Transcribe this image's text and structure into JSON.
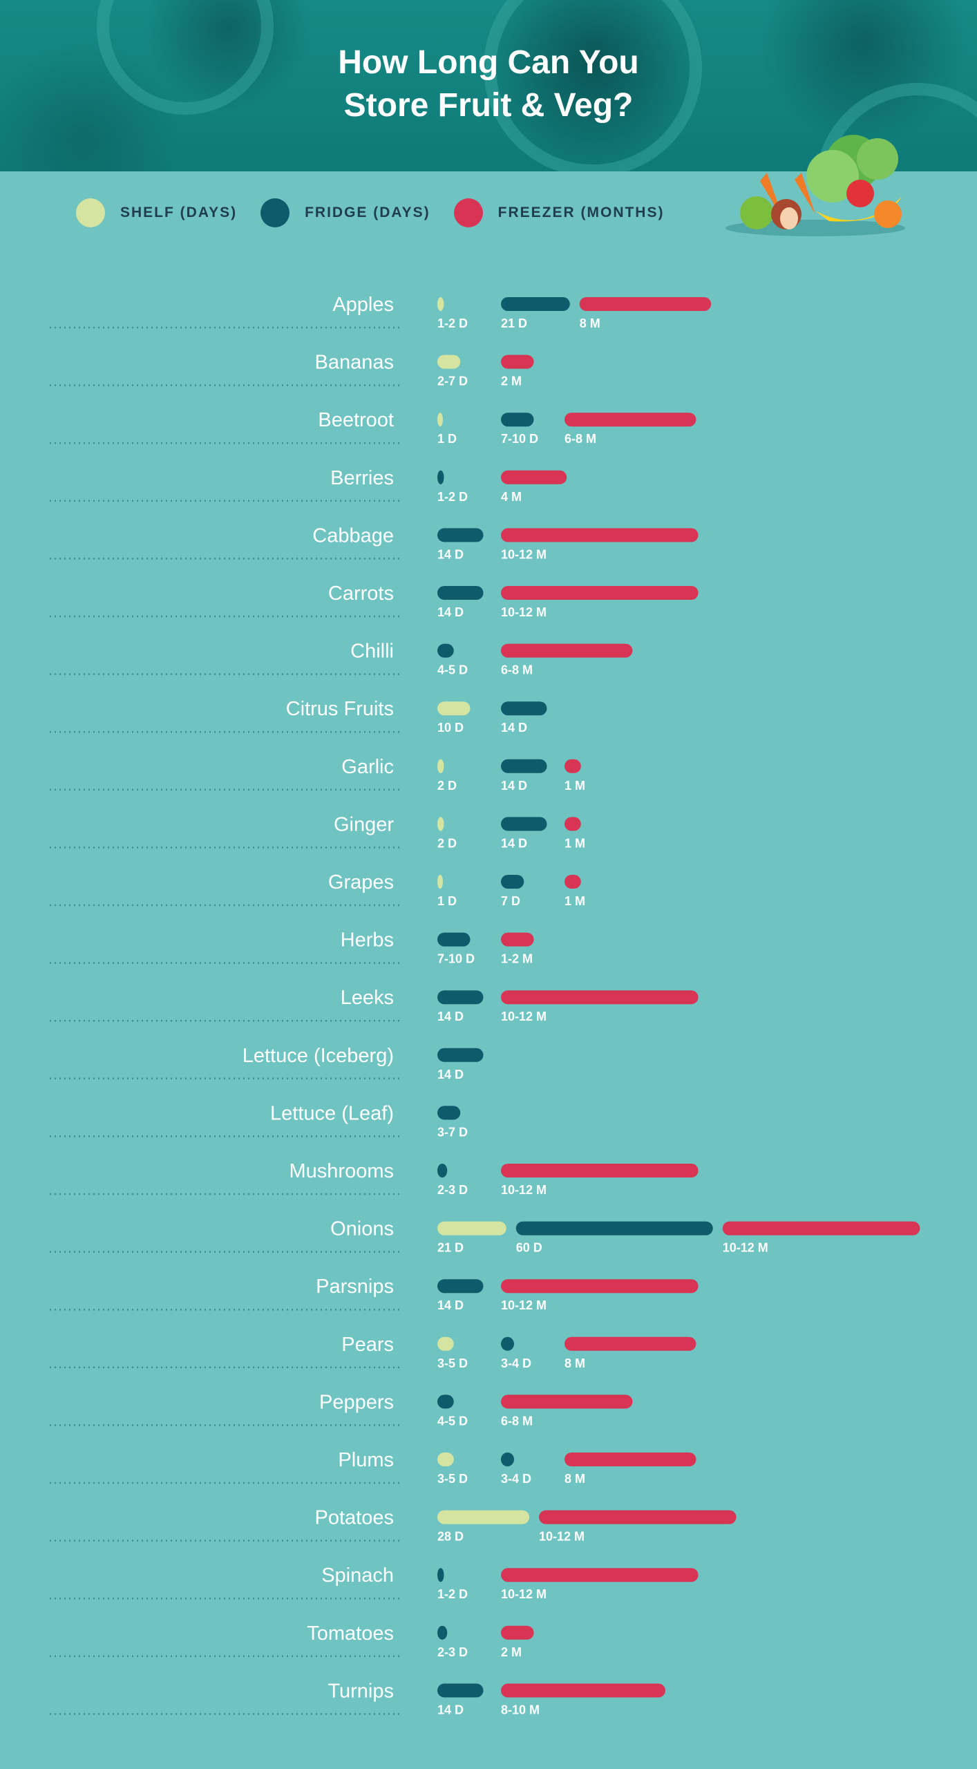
{
  "title_lines": [
    "How Long Can You",
    "Store Fruit & Veg?"
  ],
  "legend": [
    {
      "label": "SHELF (DAYS)",
      "color": "#d5e4a0"
    },
    {
      "label": "FRIDGE (DAYS)",
      "color": "#0d5b6b"
    },
    {
      "label": "FREEZER (MONTHS)",
      "color": "#d83555"
    }
  ],
  "chart_data": {
    "type": "bar",
    "orientation": "horizontal-grouped",
    "series": [
      {
        "name": "SHELF (DAYS)",
        "unit": "days",
        "color": "#d5e4a0"
      },
      {
        "name": "FRIDGE (DAYS)",
        "unit": "days",
        "color": "#0d5b6b"
      },
      {
        "name": "FREEZER (MONTHS)",
        "unit": "months",
        "color": "#d83555"
      }
    ],
    "rows": [
      {
        "name": "Apples",
        "shelf": 2,
        "shelf_label": "1-2 D",
        "fridge": 21,
        "fridge_label": "21 D",
        "freezer": 8,
        "freezer_label": "8 M"
      },
      {
        "name": "Bananas",
        "shelf": 7,
        "shelf_label": "2-7 D",
        "fridge": null,
        "fridge_label": "",
        "freezer": 2,
        "freezer_label": "2 M"
      },
      {
        "name": "Beetroot",
        "shelf": 1,
        "shelf_label": "1 D",
        "fridge": 10,
        "fridge_label": "7-10 D",
        "freezer": 8,
        "freezer_label": "6-8 M"
      },
      {
        "name": "Berries",
        "shelf": null,
        "shelf_label": "",
        "fridge": 2,
        "fridge_label": "1-2 D",
        "freezer": 4,
        "freezer_label": "4 M"
      },
      {
        "name": "Cabbage",
        "shelf": null,
        "shelf_label": "",
        "fridge": 14,
        "fridge_label": "14 D",
        "freezer": 12,
        "freezer_label": "10-12 M"
      },
      {
        "name": "Carrots",
        "shelf": null,
        "shelf_label": "",
        "fridge": 14,
        "fridge_label": "14 D",
        "freezer": 12,
        "freezer_label": "10-12 M"
      },
      {
        "name": "Chilli",
        "shelf": null,
        "shelf_label": "",
        "fridge": 5,
        "fridge_label": "4-5 D",
        "freezer": 8,
        "freezer_label": "6-8 M"
      },
      {
        "name": "Citrus Fruits",
        "shelf": 10,
        "shelf_label": "10 D",
        "fridge": 14,
        "fridge_label": "14 D",
        "freezer": null,
        "freezer_label": ""
      },
      {
        "name": "Garlic",
        "shelf": 2,
        "shelf_label": "2 D",
        "fridge": 14,
        "fridge_label": "14 D",
        "freezer": 1,
        "freezer_label": "1 M"
      },
      {
        "name": "Ginger",
        "shelf": 2,
        "shelf_label": "2 D",
        "fridge": 14,
        "fridge_label": "14 D",
        "freezer": 1,
        "freezer_label": "1 M"
      },
      {
        "name": "Grapes",
        "shelf": 1,
        "shelf_label": "1 D",
        "fridge": 7,
        "fridge_label": "7 D",
        "freezer": 1,
        "freezer_label": "1 M"
      },
      {
        "name": "Herbs",
        "shelf": null,
        "shelf_label": "",
        "fridge": 10,
        "fridge_label": "7-10 D",
        "freezer": 2,
        "freezer_label": "1-2 M"
      },
      {
        "name": "Leeks",
        "shelf": null,
        "shelf_label": "",
        "fridge": 14,
        "fridge_label": "14 D",
        "freezer": 12,
        "freezer_label": "10-12 M"
      },
      {
        "name": "Lettuce (Iceberg)",
        "shelf": null,
        "shelf_label": "",
        "fridge": 14,
        "fridge_label": "14 D",
        "freezer": null,
        "freezer_label": ""
      },
      {
        "name": "Lettuce (Leaf)",
        "shelf": null,
        "shelf_label": "",
        "fridge": 7,
        "fridge_label": "3-7 D",
        "freezer": null,
        "freezer_label": ""
      },
      {
        "name": "Mushrooms",
        "shelf": null,
        "shelf_label": "",
        "fridge": 3,
        "fridge_label": "2-3 D",
        "freezer": 12,
        "freezer_label": "10-12 M"
      },
      {
        "name": "Onions",
        "shelf": 21,
        "shelf_label": "21 D",
        "fridge": 60,
        "fridge_label": "60 D",
        "freezer": 12,
        "freezer_label": "10-12 M"
      },
      {
        "name": "Parsnips",
        "shelf": null,
        "shelf_label": "",
        "fridge": 14,
        "fridge_label": "14 D",
        "freezer": 12,
        "freezer_label": "10-12 M"
      },
      {
        "name": "Pears",
        "shelf": 5,
        "shelf_label": "3-5 D",
        "fridge": 4,
        "fridge_label": "3-4 D",
        "freezer": 8,
        "freezer_label": "8 M"
      },
      {
        "name": "Peppers",
        "shelf": null,
        "shelf_label": "",
        "fridge": 5,
        "fridge_label": "4-5 D",
        "freezer": 8,
        "freezer_label": "6-8 M"
      },
      {
        "name": "Plums",
        "shelf": 5,
        "shelf_label": "3-5 D",
        "fridge": 4,
        "fridge_label": "3-4 D",
        "freezer": 8,
        "freezer_label": "8 M"
      },
      {
        "name": "Potatoes",
        "shelf": 28,
        "shelf_label": "28 D",
        "fridge": null,
        "fridge_label": "",
        "freezer": 12,
        "freezer_label": "10-12 M"
      },
      {
        "name": "Spinach",
        "shelf": null,
        "shelf_label": "",
        "fridge": 2,
        "fridge_label": "1-2 D",
        "freezer": 12,
        "freezer_label": "10-12 M"
      },
      {
        "name": "Tomatoes",
        "shelf": null,
        "shelf_label": "",
        "fridge": 3,
        "fridge_label": "2-3 D",
        "freezer": 2,
        "freezer_label": "2 M"
      },
      {
        "name": "Turnips",
        "shelf": null,
        "shelf_label": "",
        "fridge": 14,
        "fridge_label": "14 D",
        "freezer": 10,
        "freezer_label": "8-10 M"
      }
    ]
  }
}
